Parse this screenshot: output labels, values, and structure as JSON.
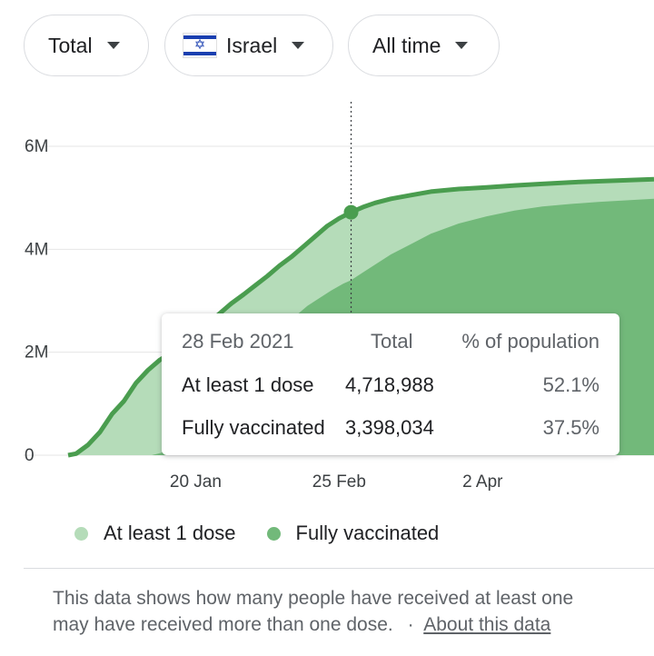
{
  "filters": {
    "metric": "Total",
    "country": "Israel",
    "range": "All time"
  },
  "colors": {
    "at_least_one": "#b5dcb9",
    "fully": "#72b97a",
    "line": "#4a9d4f",
    "grid": "#e6e6e6"
  },
  "chart_data": {
    "type": "area",
    "y_ticks": [
      "0",
      "2M",
      "4M",
      "6M"
    ],
    "ylim": [
      0,
      6000000
    ],
    "x_ticks": [
      "20 Jan",
      "25 Feb",
      "2 Apr"
    ],
    "grid": true,
    "legend_position": "bottom",
    "series": [
      {
        "name": "At least 1 dose",
        "color": "#b5dcb9",
        "points": [
          [
            "2020-12-19",
            0
          ],
          [
            "2020-12-21",
            30000
          ],
          [
            "2020-12-24",
            200000
          ],
          [
            "2020-12-27",
            450000
          ],
          [
            "2020-12-30",
            800000
          ],
          [
            "2021-01-02",
            1050000
          ],
          [
            "2021-01-05",
            1400000
          ],
          [
            "2021-01-08",
            1650000
          ],
          [
            "2021-01-11",
            1850000
          ],
          [
            "2021-01-14",
            2000000
          ],
          [
            "2021-01-17",
            2150000
          ],
          [
            "2021-01-20",
            2350000
          ],
          [
            "2021-01-23",
            2550000
          ],
          [
            "2021-01-26",
            2750000
          ],
          [
            "2021-01-29",
            2950000
          ],
          [
            "2021-02-01",
            3120000
          ],
          [
            "2021-02-04",
            3300000
          ],
          [
            "2021-02-07",
            3480000
          ],
          [
            "2021-02-10",
            3680000
          ],
          [
            "2021-02-13",
            3850000
          ],
          [
            "2021-02-16",
            4050000
          ],
          [
            "2021-02-19",
            4250000
          ],
          [
            "2021-02-22",
            4450000
          ],
          [
            "2021-02-25",
            4600000
          ],
          [
            "2021-02-28",
            4718988
          ],
          [
            "2021-03-03",
            4820000
          ],
          [
            "2021-03-06",
            4900000
          ],
          [
            "2021-03-10",
            4980000
          ],
          [
            "2021-03-15",
            5050000
          ],
          [
            "2021-03-20",
            5120000
          ],
          [
            "2021-03-27",
            5170000
          ],
          [
            "2021-04-03",
            5200000
          ],
          [
            "2021-04-10",
            5240000
          ],
          [
            "2021-04-17",
            5270000
          ],
          [
            "2021-04-24",
            5300000
          ],
          [
            "2021-05-01",
            5320000
          ],
          [
            "2021-05-08",
            5340000
          ],
          [
            "2021-05-15",
            5360000
          ]
        ]
      },
      {
        "name": "Fully vaccinated",
        "color": "#72b97a",
        "points": [
          [
            "2021-01-09",
            0
          ],
          [
            "2021-01-12",
            60000
          ],
          [
            "2021-01-15",
            250000
          ],
          [
            "2021-01-18",
            500000
          ],
          [
            "2021-01-21",
            800000
          ],
          [
            "2021-01-24",
            1050000
          ],
          [
            "2021-01-27",
            1350000
          ],
          [
            "2021-01-30",
            1550000
          ],
          [
            "2021-02-02",
            1800000
          ],
          [
            "2021-02-05",
            2050000
          ],
          [
            "2021-02-08",
            2300000
          ],
          [
            "2021-02-11",
            2500000
          ],
          [
            "2021-02-14",
            2700000
          ],
          [
            "2021-02-17",
            2900000
          ],
          [
            "2021-02-20",
            3050000
          ],
          [
            "2021-02-23",
            3200000
          ],
          [
            "2021-02-26",
            3330000
          ],
          [
            "2021-02-28",
            3398034
          ],
          [
            "2021-03-03",
            3550000
          ],
          [
            "2021-03-06",
            3700000
          ],
          [
            "2021-03-10",
            3900000
          ],
          [
            "2021-03-15",
            4100000
          ],
          [
            "2021-03-20",
            4300000
          ],
          [
            "2021-03-27",
            4500000
          ],
          [
            "2021-04-03",
            4640000
          ],
          [
            "2021-04-10",
            4750000
          ],
          [
            "2021-04-17",
            4830000
          ],
          [
            "2021-04-24",
            4880000
          ],
          [
            "2021-05-01",
            4920000
          ],
          [
            "2021-05-08",
            4950000
          ],
          [
            "2021-05-15",
            4980000
          ]
        ]
      }
    ],
    "hover": {
      "date": "28 Feb 2021",
      "x": "2021-02-28",
      "columns": [
        "Total",
        "% of population"
      ],
      "rows": [
        {
          "label": "At least 1 dose",
          "total": "4,718,988",
          "pct": "52.1%"
        },
        {
          "label": "Fully vaccinated",
          "total": "3,398,034",
          "pct": "37.5%"
        }
      ]
    }
  },
  "footnote": {
    "text_line1": "This data shows how many people have received at least one",
    "text_line2": "may have received more than one dose.",
    "separator": "·",
    "link": "About this data"
  }
}
